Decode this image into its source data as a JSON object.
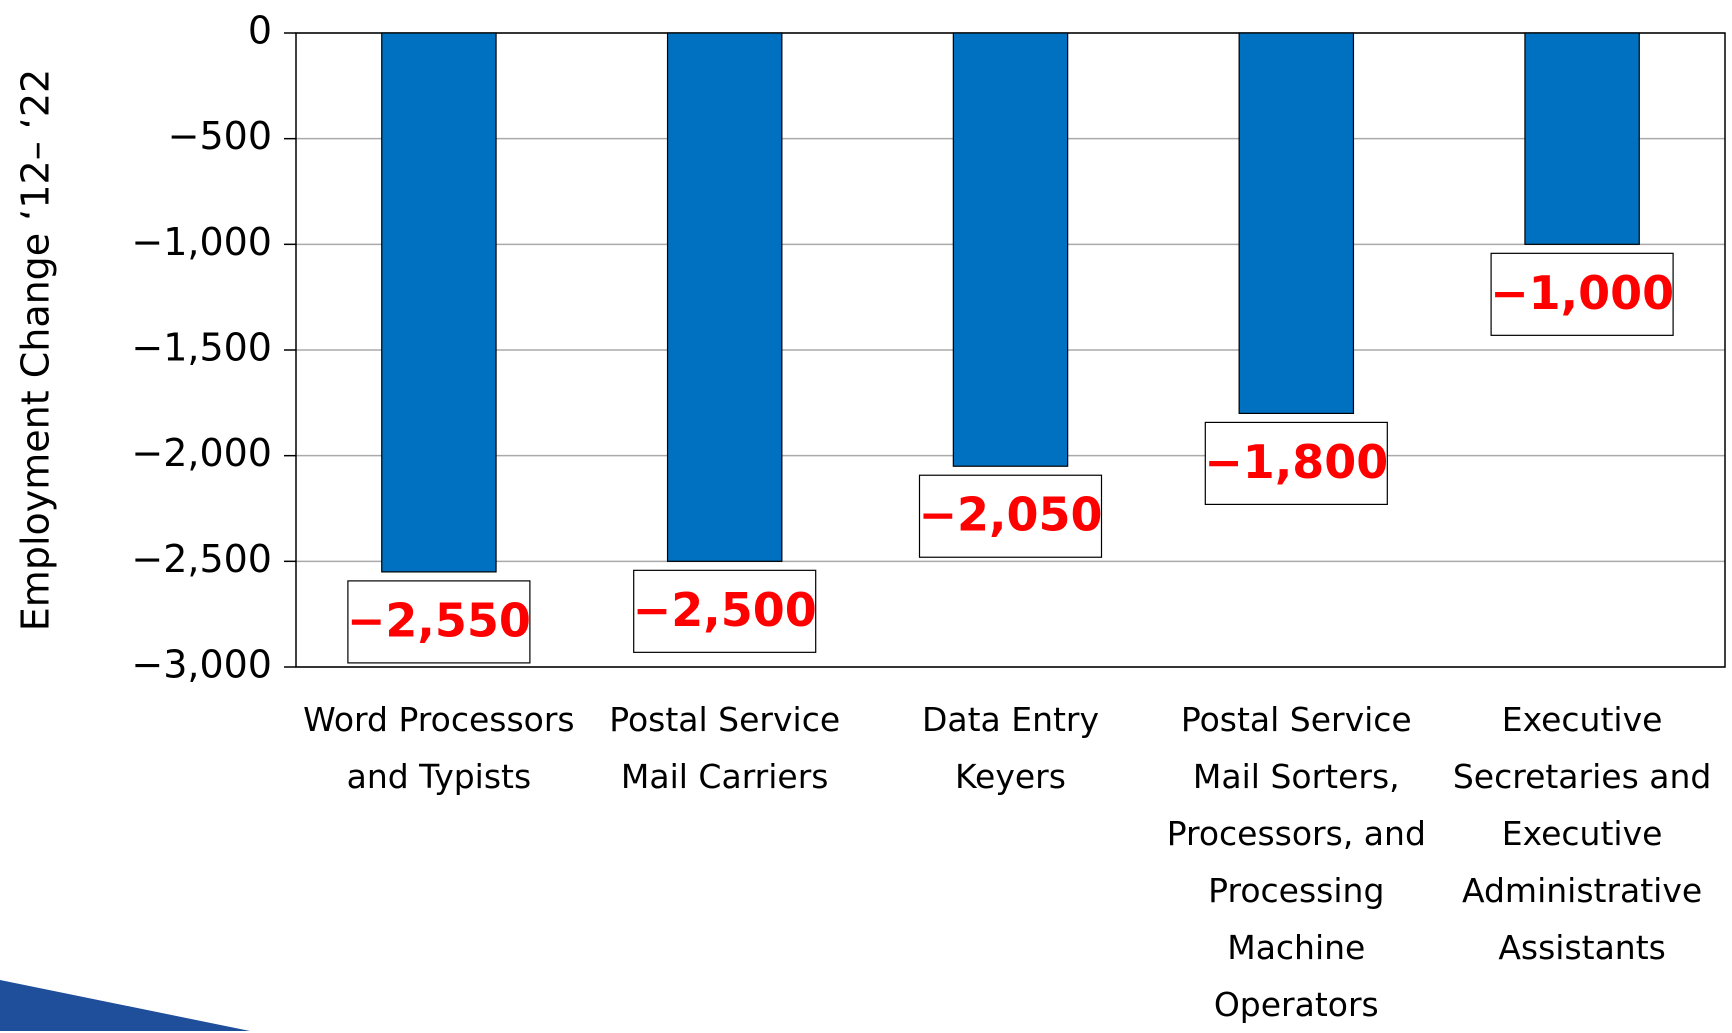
{
  "chart_data": {
    "type": "bar",
    "y_label": "Employment Change ‘12– ‘22",
    "categories": [
      "Word Processors and Typists",
      "Postal Service Mail Carriers",
      "Data Entry Keyers",
      "Postal Service Mail Sorters, Processors, and Processing Machine Operators",
      "Executive Secretaries and Executive Administrative Assistants"
    ],
    "values": [
      -2550,
      -2500,
      -2050,
      -1800,
      -1000
    ],
    "value_labels": [
      "−2,550",
      "−2,500",
      "−2,050",
      "−1,800",
      "−1,000"
    ],
    "color": "#0070c0",
    "ylim": [
      -3000,
      0
    ],
    "yticks": [
      0,
      {
        "value": -500,
        "label": "−500"
      },
      {
        "value": -1000,
        "label": "−1,000"
      },
      {
        "value": -1500,
        "label": "−1,500"
      },
      {
        "value": -2000,
        "label": "−2,000"
      },
      {
        "value": -2500,
        "label": "−2,500"
      },
      {
        "value": -3000,
        "label": "−3,000"
      }
    ],
    "grid": true
  }
}
